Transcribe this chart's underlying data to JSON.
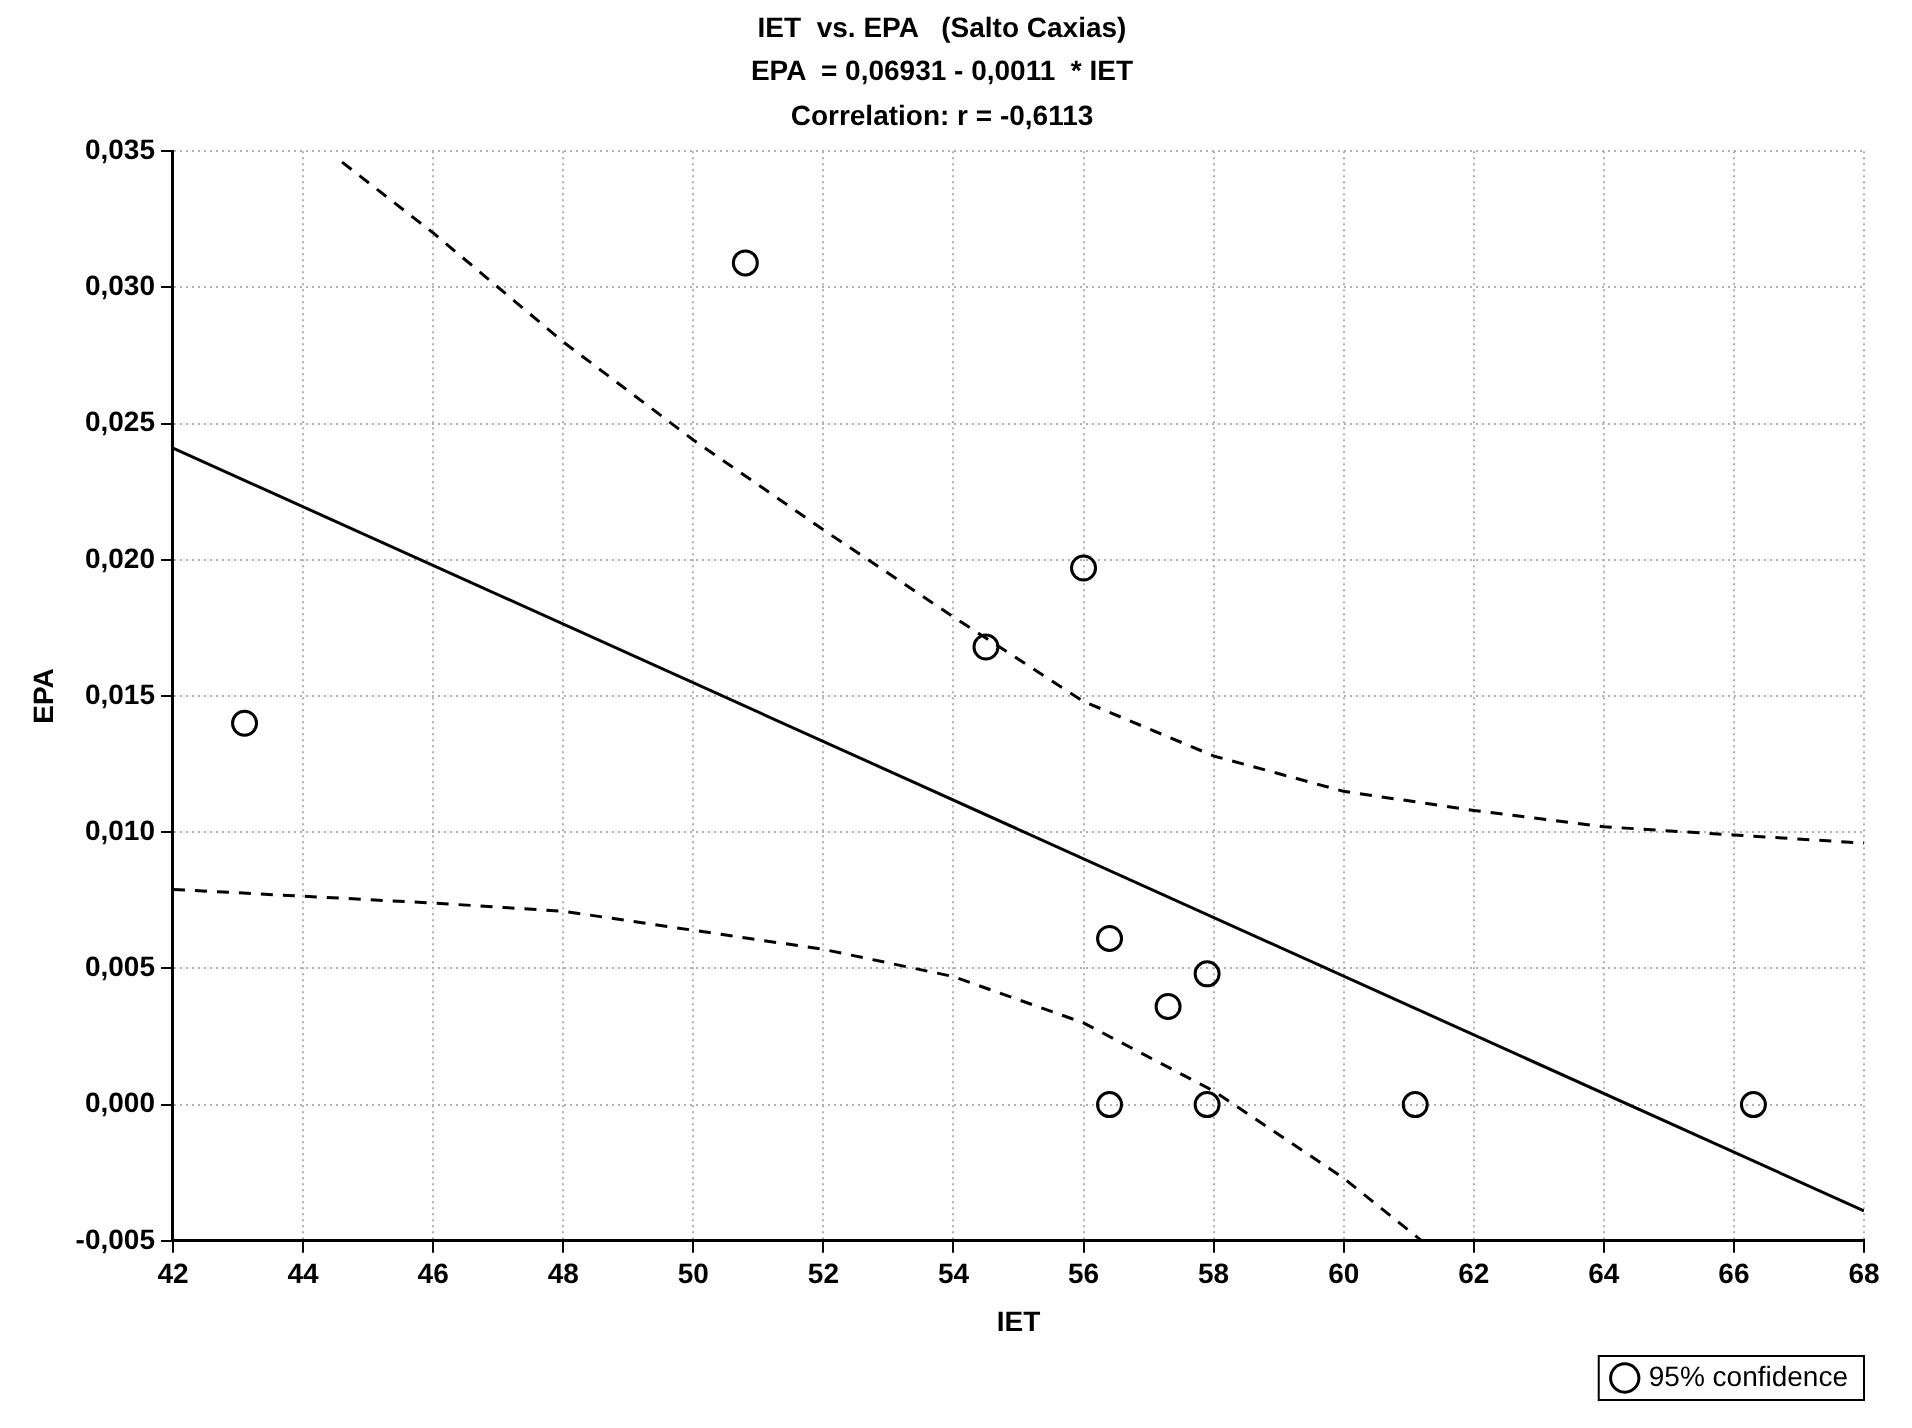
{
  "chart_data": {
    "type": "scatter",
    "title": "IET  vs. EPA   (Salto Caxias)",
    "subtitle": "EPA  = 0,06931 - 0,0011  * IET",
    "annotations": [
      "Correlation: r = -0,6113"
    ],
    "xlabel": "IET",
    "ylabel": "EPA",
    "xlim": [
      42,
      68
    ],
    "xticks": [
      42,
      44,
      46,
      48,
      50,
      52,
      54,
      56,
      58,
      60,
      62,
      64,
      66,
      68
    ],
    "ylim": [
      -0.005,
      0.035
    ],
    "yticks": [
      {
        "value": -0.005,
        "label": "-0,005"
      },
      {
        "value": 0,
        "label": "0,000"
      },
      {
        "value": 0.005,
        "label": "0,005"
      },
      {
        "value": 0.01,
        "label": "0,010"
      },
      {
        "value": 0.015,
        "label": "0,015"
      },
      {
        "value": 0.02,
        "label": "0,020"
      },
      {
        "value": 0.025,
        "label": "0,025"
      },
      {
        "value": 0.03,
        "label": "0,030"
      },
      {
        "value": 0.035,
        "label": "0,035"
      }
    ],
    "grid": true,
    "legend": "bottom right",
    "series": [
      {
        "name": "95% confidence",
        "type": "scatter",
        "marker": "circle",
        "color": "#000000",
        "x": [
          43.1,
          50.8,
          54.5,
          56,
          56.4,
          57.9,
          57.3,
          56.4,
          57.9,
          61.1,
          66.3
        ],
        "values": [
          0.014,
          0.0309,
          0.0168,
          0.0197,
          0.0061,
          0.0048,
          0.0036,
          0,
          0,
          0,
          0
        ]
      },
      {
        "type": "line",
        "line_style": "solid",
        "marker": "none",
        "color": "#000000",
        "x": [
          42,
          68
        ],
        "values": [
          0.0241,
          -0.0039
        ]
      },
      {
        "type": "line",
        "line_style": "dashed",
        "marker": "none",
        "color": "#000000",
        "x": [
          44.6,
          46,
          48,
          50,
          52,
          54,
          56,
          58,
          60,
          62,
          64,
          66,
          68
        ],
        "values": [
          0.0346,
          0.032,
          0.028,
          0.0244,
          0.0211,
          0.0179,
          0.0148,
          0.0128,
          0.0115,
          0.0108,
          0.0102,
          0.0099,
          0.0096
        ]
      },
      {
        "type": "line",
        "line_style": "dashed",
        "marker": "none",
        "color": "#000000",
        "x": [
          42,
          46,
          48,
          50,
          52,
          54,
          56,
          58,
          60,
          61.2
        ],
        "values": [
          0.0079,
          0.0074,
          0.0071,
          0.0064,
          0.0057,
          0.0047,
          0.003,
          0.0005,
          -0.0027,
          -0.005
        ]
      }
    ]
  }
}
